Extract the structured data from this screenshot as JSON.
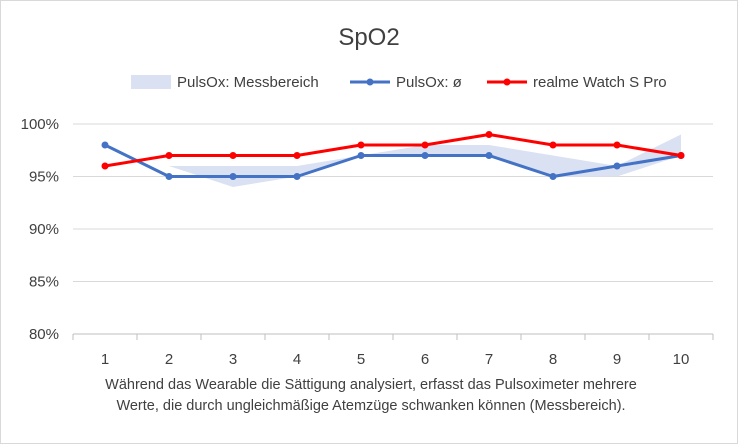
{
  "chart_data": {
    "type": "line",
    "title": "SpO2",
    "x": [
      1,
      2,
      3,
      4,
      5,
      6,
      7,
      8,
      9,
      10
    ],
    "x_tick_labels": [
      "1",
      "2",
      "3",
      "4",
      "5",
      "6",
      "7",
      "8",
      "9",
      "10"
    ],
    "ylim": [
      80,
      100
    ],
    "y_ticks": [
      80,
      85,
      90,
      95,
      100
    ],
    "y_tick_labels": [
      "80%",
      "85%",
      "90%",
      "95%",
      "100%"
    ],
    "grid": true,
    "legend_position": "top",
    "series": [
      {
        "name": "PulsOx: Messbereich",
        "kind": "range-area",
        "color": "#d9e1f2",
        "lower": [
          98,
          96,
          94,
          95,
          97,
          97,
          97,
          95,
          95,
          97
        ],
        "upper": [
          98,
          96,
          96,
          96,
          97,
          98,
          98,
          97,
          96,
          99
        ]
      },
      {
        "name": "PulsOx: ø",
        "kind": "line",
        "color": "#4472c4",
        "values": [
          98,
          95,
          95,
          95,
          97,
          97,
          97,
          95,
          96,
          97
        ]
      },
      {
        "name": "realme Watch S Pro",
        "kind": "line",
        "color": "#ff0000",
        "values": [
          96,
          97,
          97,
          97,
          98,
          98,
          99,
          98,
          98,
          97
        ]
      }
    ]
  },
  "caption": {
    "line1": "Während das Wearable die Sättigung analysiert, erfasst das Pulsoximeter mehrere",
    "line2": "Werte, die durch ungleichmäßige Atemzüge schwanken können (Messbereich)."
  }
}
